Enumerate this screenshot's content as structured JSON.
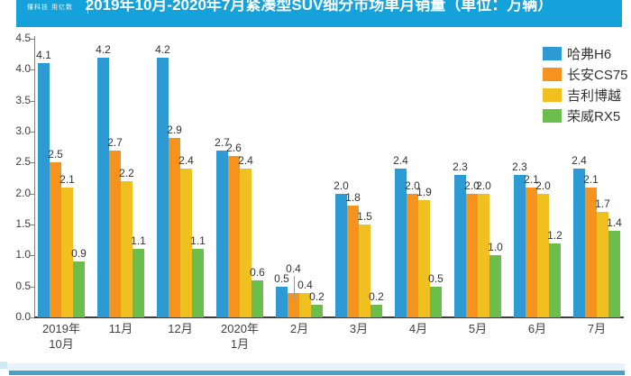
{
  "header": {
    "logo_text": "懂科技 用亿数",
    "title": "2019年10月-2020年7月紧凑型SUV细分市场单月销量（单位：万辆）",
    "bg_color": "#15A2DB"
  },
  "chart_data": {
    "type": "bar",
    "title": "2019年10月-2020年7月紧凑型SUV细分市场单月销量（单位：万辆）",
    "unit": "万辆",
    "categories": [
      [
        "2019年",
        "10月"
      ],
      [
        "11月"
      ],
      [
        "12月"
      ],
      [
        "2020年",
        "1月"
      ],
      [
        "2月"
      ],
      [
        "3月"
      ],
      [
        "4月"
      ],
      [
        "5月"
      ],
      [
        "6月"
      ],
      [
        "7月"
      ]
    ],
    "series": [
      {
        "name": "哈弗H6",
        "color": "#2D9AD3",
        "values": [
          4.1,
          4.2,
          4.2,
          2.7,
          0.5,
          2.0,
          2.4,
          2.3,
          2.3,
          2.4
        ]
      },
      {
        "name": "长安CS75",
        "color": "#F6921E",
        "values": [
          2.5,
          2.7,
          2.9,
          2.6,
          0.4,
          1.8,
          2.0,
          2.0,
          2.1,
          2.1
        ]
      },
      {
        "name": "吉利博越",
        "color": "#F0C020",
        "values": [
          2.1,
          2.2,
          2.4,
          2.4,
          0.4,
          1.5,
          1.9,
          2.0,
          2.0,
          1.7
        ]
      },
      {
        "name": "荣威RX5",
        "color": "#6BBE4C",
        "values": [
          0.9,
          1.1,
          1.1,
          0.6,
          0.2,
          0.2,
          0.5,
          1.0,
          1.2,
          1.4
        ]
      }
    ],
    "ylim": [
      0,
      4.5
    ],
    "yticks": [
      "0.0",
      "0.5",
      "1.0",
      "1.5",
      "2.0",
      "2.5",
      "3.0",
      "3.5",
      "4.0",
      "4.5"
    ],
    "xlabel": "",
    "ylabel": "",
    "grid": false,
    "legend_position": "top-right",
    "label_callouts": [
      {
        "group": 4,
        "series": 1,
        "lift": 18
      }
    ]
  },
  "footer": {
    "glow_color": "#E6F3F9",
    "line_color": "#4C9EC5",
    "fragment_color": "#CFE9F4"
  }
}
